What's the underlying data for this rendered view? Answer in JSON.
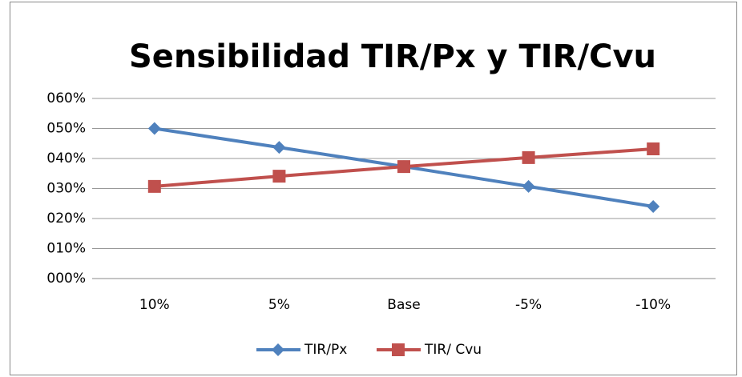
{
  "chart_data": {
    "type": "line",
    "title": "Sensibilidad TIR/Px y TIR/Cvu",
    "categories": [
      "10%",
      "5%",
      "Base",
      "-5%",
      "-10%"
    ],
    "series": [
      {
        "name": "TIR/Px",
        "color": "#4f81bd",
        "marker": "diamond",
        "values": [
          50,
          43.7,
          37.3,
          30.7,
          24
        ]
      },
      {
        "name": "TIR/ Cvu",
        "color": "#c0504d",
        "marker": "square",
        "values": [
          30.7,
          34.1,
          37.3,
          40.3,
          43.2
        ]
      }
    ],
    "ylim": [
      0,
      60
    ],
    "yticks": [
      {
        "value": 0,
        "label": "000%"
      },
      {
        "value": 10,
        "label": "010%"
      },
      {
        "value": 20,
        "label": "020%"
      },
      {
        "value": 30,
        "label": "030%"
      },
      {
        "value": 40,
        "label": "040%"
      },
      {
        "value": 50,
        "label": "050%"
      },
      {
        "value": 60,
        "label": "060%"
      }
    ],
    "grid": true,
    "legend": "bottom"
  }
}
